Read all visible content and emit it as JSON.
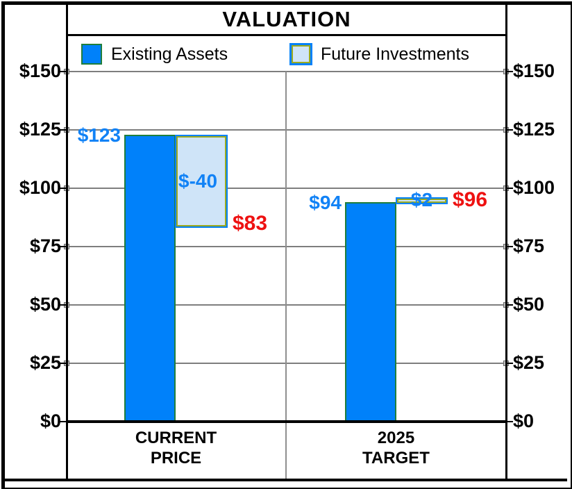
{
  "title": "VALUATION",
  "legend": {
    "existing_label": "Existing Assets",
    "future_label": "Future Investments"
  },
  "y_axis": {
    "tick_labels": [
      "$150",
      "$125",
      "$100",
      "$75",
      "$50",
      "$25",
      "$0"
    ],
    "tick_values": [
      150,
      125,
      100,
      75,
      50,
      25,
      0
    ],
    "shown_on_both_sides": true
  },
  "x_axis": {
    "category_lines": [
      [
        "CURRENT",
        "PRICE"
      ],
      [
        "2025",
        "TARGET"
      ]
    ]
  },
  "chart_data": {
    "type": "bar",
    "title": "VALUATION",
    "categories": [
      "CURRENT PRICE",
      "2025 TARGET"
    ],
    "series": [
      {
        "name": "Existing Assets",
        "values": [
          123,
          94
        ]
      },
      {
        "name": "Future Investments",
        "values": [
          -40,
          2
        ]
      }
    ],
    "totals": [
      83,
      96
    ],
    "value_labels": {
      "existing": [
        "$123",
        "$94"
      ],
      "future": [
        "$-40",
        "$2"
      ],
      "totals": [
        "$83",
        "$96"
      ]
    },
    "ylim": [
      0,
      150
    ],
    "ytick_step": 25,
    "ytick_prefix": "$",
    "grid": true,
    "legend_position": "top"
  },
  "colors": {
    "existing_fill": "#0081FA",
    "existing_edge": "#1F7E3C",
    "future_fill": "#CFE4F8",
    "future_edge_outer": "#0081FA",
    "future_edge_inner": "#9CAA1F",
    "blue_value_label": "#1182F6",
    "red_total_label": "#EE1111",
    "gridline": "#7E7E7E",
    "axis_black": "#000000"
  }
}
